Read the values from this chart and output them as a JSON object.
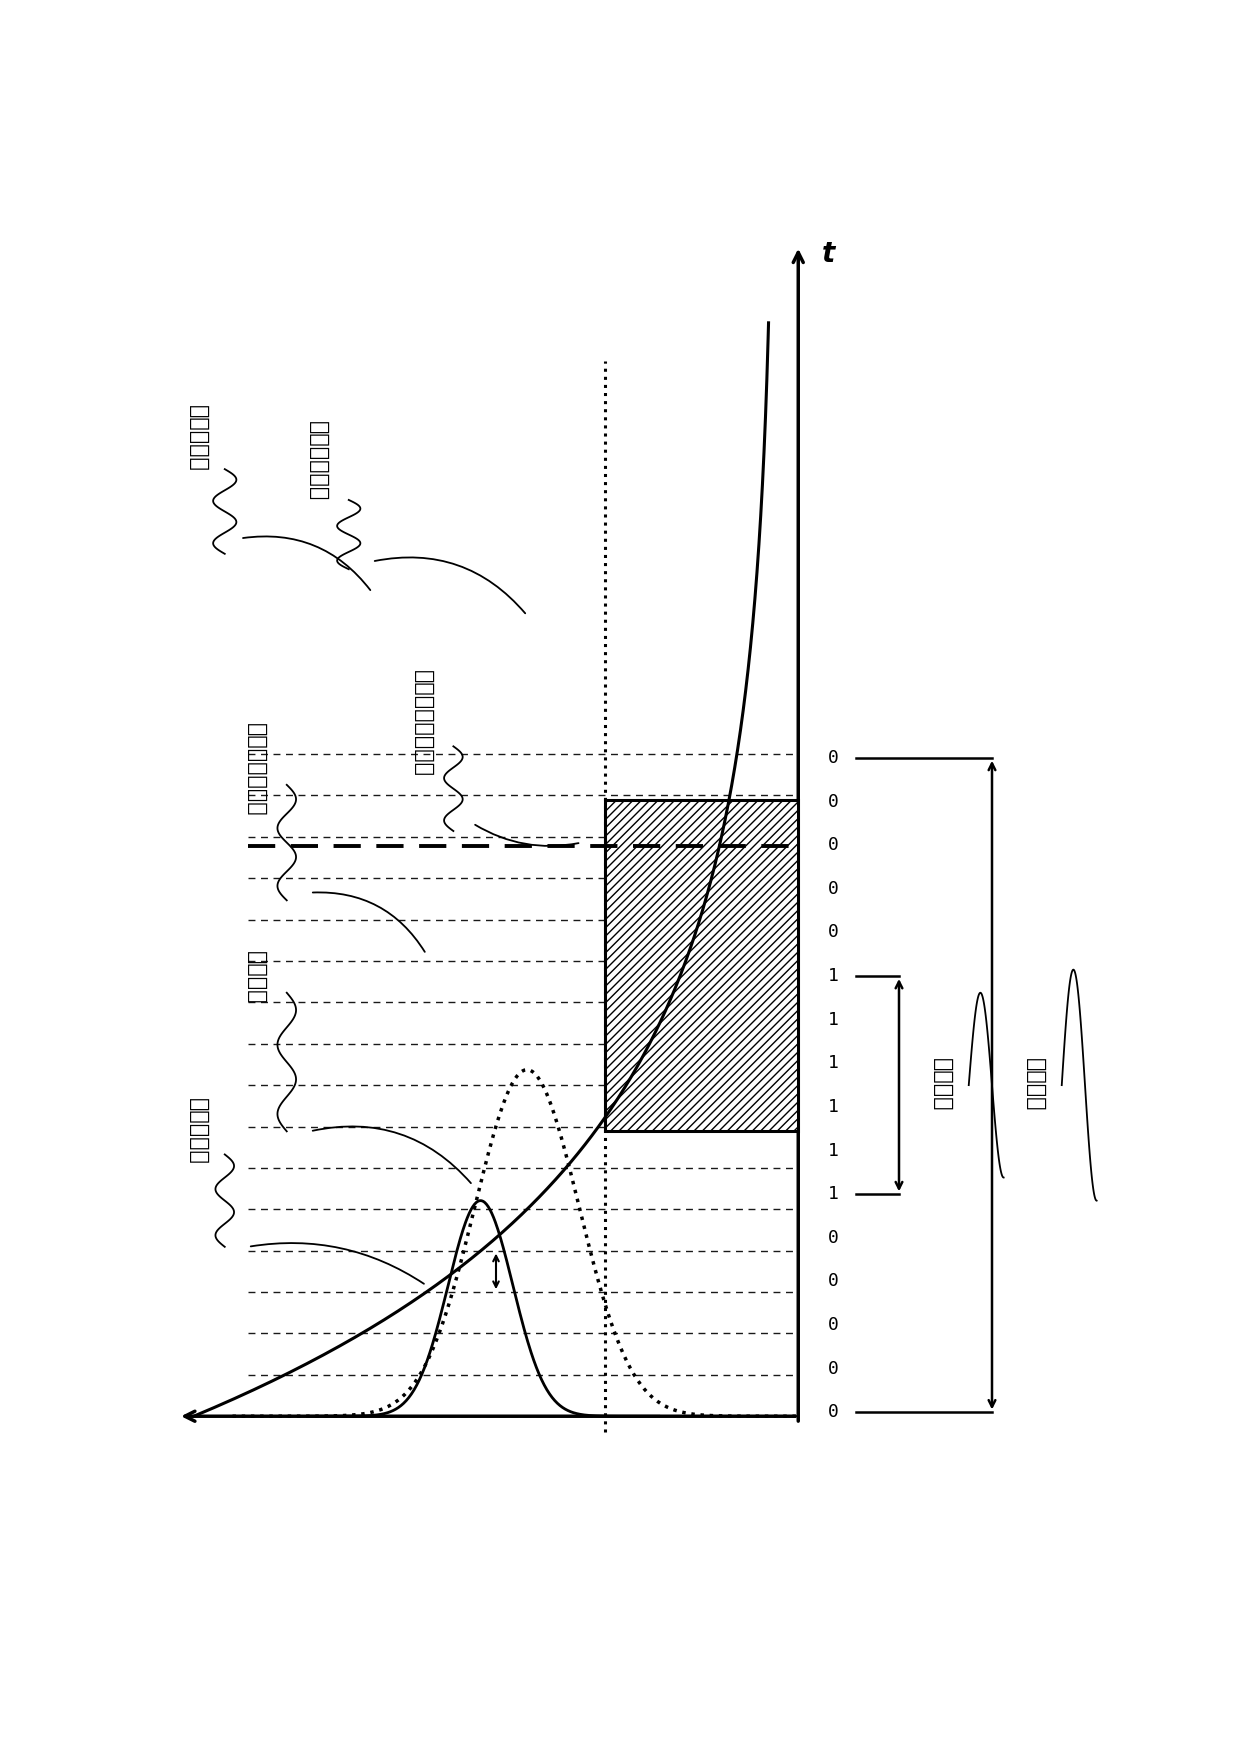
{
  "fig_width": 12.4,
  "fig_height": 17.47,
  "bg_color": "#ffffff",
  "t_label": "t",
  "label_jiaguang_top": "激发光脉冲",
  "label_yingguang": "荧光衰减曲线",
  "label_yongyu": "用于比较器的阈値",
  "label_moni": "模拟探测器信号",
  "label_caiyang": "采样间隔",
  "label_jiaguang_bot": "激发光脉冲",
  "label_guangzi": "光子间隔",
  "label_celiang": "测量间隔",
  "digits": [
    "0",
    "0",
    "0",
    "0",
    "0",
    "1",
    "1",
    "1",
    "1",
    "1",
    "1",
    "0",
    "0",
    "0",
    "0",
    "0"
  ],
  "n_grid_lines": 16
}
